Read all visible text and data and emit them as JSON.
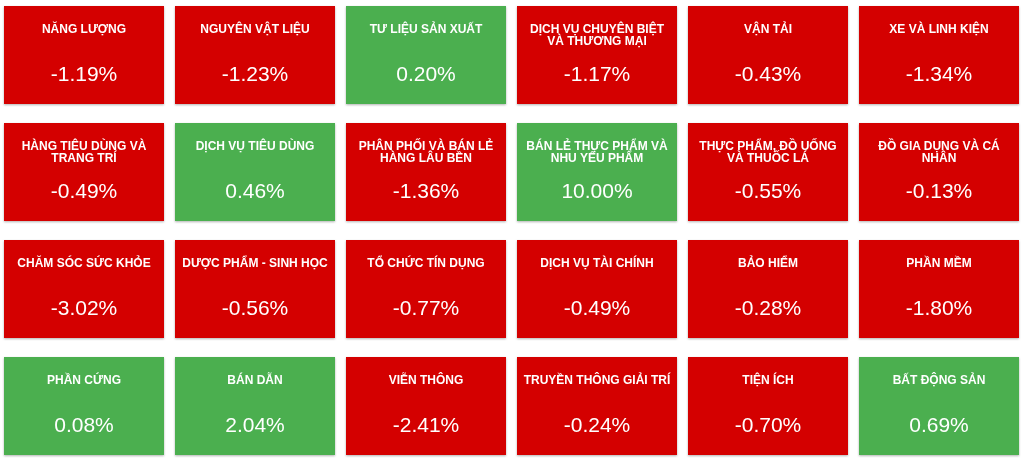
{
  "chart_data": {
    "type": "other",
    "categories": [
      "NĂNG LƯỢNG",
      "NGUYÊN VẬT LIỆU",
      "TƯ LIỆU SẢN XUẤT",
      "DỊCH VỤ CHUYÊN BIỆT VÀ THƯƠNG MẠI",
      "VẬN TẢI",
      "XE VÀ LINH KIỆN",
      "HÀNG TIÊU DÙNG VÀ TRANG TRÍ",
      "DỊCH VỤ TIÊU DÙNG",
      "PHÂN PHỐI VÀ BÁN LẺ HÀNG LÂU BỀN",
      "BÁN LẺ THỰC PHẨM VÀ NHU YẾU PHẨM",
      "THỰC PHẨM, ĐỒ UỐNG VÀ THUỐC LÁ",
      "ĐỒ GIA DỤNG VÀ CÁ NHÂN",
      "CHĂM SÓC SỨC KHỎE",
      "DƯỢC PHẨM - SINH HỌC",
      "TỔ CHỨC TÍN DỤNG",
      "DỊCH VỤ TÀI CHÍNH",
      "BẢO HIỂM",
      "PHẦN MỀM",
      "PHẦN CỨNG",
      "BÁN DẪN",
      "VIỄN THÔNG",
      "TRUYỀN THÔNG GIẢI TRÍ",
      "TIỆN ÍCH",
      "BẤT ĐỘNG SẢN"
    ],
    "values": [
      -1.19,
      -1.23,
      0.2,
      -1.17,
      -0.43,
      -1.34,
      -0.49,
      0.46,
      -1.36,
      10.0,
      -0.55,
      -0.13,
      -3.02,
      -0.56,
      -0.77,
      -0.49,
      -0.28,
      -1.8,
      0.08,
      2.04,
      -2.41,
      -0.24,
      -0.7,
      0.69
    ],
    "value_labels": [
      "-1.19%",
      "-1.23%",
      "0.20%",
      "-1.17%",
      "-0.43%",
      "-1.34%",
      "-0.49%",
      "0.46%",
      "-1.36%",
      "10.00%",
      "-0.55%",
      "-0.13%",
      "-3.02%",
      "-0.56%",
      "-0.77%",
      "-0.49%",
      "-0.28%",
      "-1.80%",
      "0.08%",
      "2.04%",
      "-2.41%",
      "-0.24%",
      "-0.70%",
      "0.69%"
    ],
    "colors": [
      "#d40000",
      "#d40000",
      "#4caf50",
      "#d40000",
      "#d40000",
      "#d40000",
      "#d40000",
      "#4caf50",
      "#d40000",
      "#4caf50",
      "#d40000",
      "#d40000",
      "#d40000",
      "#d40000",
      "#d40000",
      "#d40000",
      "#d40000",
      "#d40000",
      "#4caf50",
      "#4caf50",
      "#d40000",
      "#d40000",
      "#d40000",
      "#4caf50"
    ]
  }
}
